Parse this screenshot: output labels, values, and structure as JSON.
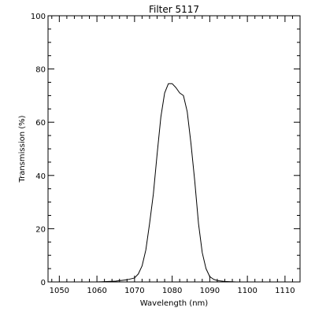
{
  "chart_data": {
    "type": "line",
    "title": "Filter 5117",
    "xlabel": "Wavelength (nm)",
    "ylabel": "Transmission (%)",
    "xlim": [
      1047,
      1114
    ],
    "ylim": [
      0,
      100
    ],
    "grid": false,
    "x_ticks": [
      1050,
      1060,
      1070,
      1080,
      1090,
      1100,
      1110
    ],
    "y_ticks": [
      0,
      20,
      40,
      60,
      80,
      100
    ],
    "x_tick_labels": [
      "1050",
      "1060",
      "1070",
      "1080",
      "1090",
      "1100",
      "1110"
    ],
    "y_tick_labels": [
      "0",
      "20",
      "40",
      "60",
      "80",
      "100"
    ],
    "series": [
      {
        "color": "#000000",
        "x": [
          1050,
          1055,
          1060,
          1065,
          1068,
          1070,
          1071,
          1072,
          1073,
          1074,
          1075,
          1076,
          1077,
          1078,
          1079,
          1080,
          1081,
          1082,
          1083,
          1084,
          1085,
          1086,
          1087,
          1088,
          1089,
          1090,
          1091,
          1092,
          1094,
          1097,
          1100,
          1105,
          1110
        ],
        "y": [
          0,
          0,
          0,
          0.3,
          0.8,
          1.5,
          3,
          6,
          12,
          22,
          33,
          48,
          62,
          71,
          74.5,
          74.5,
          73,
          71,
          70,
          64,
          52,
          38,
          22,
          11,
          5,
          2,
          1,
          0.5,
          0.2,
          0,
          0,
          0,
          0
        ]
      }
    ]
  }
}
